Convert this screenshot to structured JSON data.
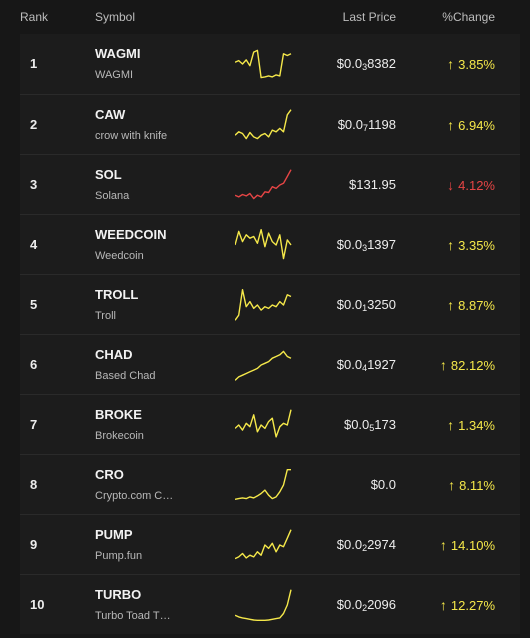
{
  "header": {
    "rank": "Rank",
    "symbol": "Symbol",
    "last_price": "Last Price",
    "change": "%Change"
  },
  "colors": {
    "up": "#f5e84a",
    "down": "#e64545"
  },
  "rows": [
    {
      "rank": "1",
      "ticker": "WAGMI",
      "name": "WAGMI",
      "price_prefix": "$0.0",
      "price_sub": "3",
      "price_rest": "8382",
      "change": "3.85%",
      "dir": "up",
      "spark": [
        0.55,
        0.6,
        0.5,
        0.62,
        0.45,
        0.85,
        0.9,
        0.1,
        0.12,
        0.15,
        0.12,
        0.18,
        0.15,
        0.8,
        0.75,
        0.8
      ]
    },
    {
      "rank": "2",
      "ticker": "CAW",
      "name": "crow with knife",
      "price_prefix": "$0.0",
      "price_sub": "7",
      "price_rest": "1198",
      "change": "6.94%",
      "dir": "up",
      "spark": [
        0.2,
        0.3,
        0.25,
        0.1,
        0.28,
        0.15,
        0.1,
        0.2,
        0.25,
        0.15,
        0.35,
        0.3,
        0.4,
        0.3,
        0.8,
        0.95
      ]
    },
    {
      "rank": "3",
      "ticker": "SOL",
      "name": "Solana",
      "price_prefix": "$131.95",
      "price_sub": "",
      "price_rest": "",
      "change": "4.12%",
      "dir": "down",
      "spark": [
        0.2,
        0.15,
        0.22,
        0.18,
        0.25,
        0.1,
        0.2,
        0.15,
        0.3,
        0.28,
        0.45,
        0.4,
        0.5,
        0.55,
        0.75,
        0.95
      ]
    },
    {
      "rank": "4",
      "ticker": "WEEDCOIN",
      "name": "Weedcoin",
      "price_prefix": "$0.0",
      "price_sub": "3",
      "price_rest": "1397",
      "change": "3.35%",
      "dir": "up",
      "spark": [
        0.5,
        0.9,
        0.6,
        0.8,
        0.7,
        0.75,
        0.55,
        0.95,
        0.45,
        0.85,
        0.6,
        0.5,
        0.8,
        0.1,
        0.65,
        0.5
      ]
    },
    {
      "rank": "5",
      "ticker": "TROLL",
      "name": "Troll",
      "price_prefix": "$0.0",
      "price_sub": "1",
      "price_rest": "3250",
      "change": "8.87%",
      "dir": "up",
      "spark": [
        0.05,
        0.2,
        0.95,
        0.45,
        0.6,
        0.4,
        0.5,
        0.35,
        0.45,
        0.4,
        0.5,
        0.45,
        0.6,
        0.5,
        0.8,
        0.75
      ]
    },
    {
      "rank": "6",
      "ticker": "CHAD",
      "name": "Based Chad",
      "price_prefix": "$0.0",
      "price_sub": "4",
      "price_rest": "1927",
      "change": "82.12%",
      "dir": "up",
      "spark": [
        0.05,
        0.15,
        0.2,
        0.25,
        0.3,
        0.35,
        0.4,
        0.5,
        0.55,
        0.6,
        0.7,
        0.75,
        0.8,
        0.9,
        0.75,
        0.7
      ]
    },
    {
      "rank": "7",
      "ticker": "BROKE",
      "name": "Brokecoin",
      "price_prefix": "$0.0",
      "price_sub": "5",
      "price_rest": "173",
      "change": "1.34%",
      "dir": "up",
      "spark": [
        0.4,
        0.5,
        0.35,
        0.55,
        0.45,
        0.8,
        0.3,
        0.5,
        0.4,
        0.6,
        0.7,
        0.15,
        0.45,
        0.55,
        0.5,
        0.95
      ]
    },
    {
      "rank": "8",
      "ticker": "CRO",
      "name": "Crypto.com C…",
      "price_prefix": "$0.0",
      "price_sub": "",
      "price_rest": "",
      "change": "8.11%",
      "dir": "up",
      "spark": [
        0.08,
        0.1,
        0.12,
        0.1,
        0.15,
        0.12,
        0.18,
        0.25,
        0.35,
        0.2,
        0.1,
        0.15,
        0.3,
        0.5,
        0.95,
        0.95
      ]
    },
    {
      "rank": "9",
      "ticker": "PUMP",
      "name": "Pump.fun",
      "price_prefix": "$0.0",
      "price_sub": "2",
      "price_rest": "2974",
      "change": "14.10%",
      "dir": "up",
      "spark": [
        0.1,
        0.15,
        0.25,
        0.12,
        0.2,
        0.15,
        0.3,
        0.2,
        0.5,
        0.4,
        0.55,
        0.3,
        0.5,
        0.45,
        0.7,
        0.95
      ]
    },
    {
      "rank": "10",
      "ticker": "TURBO",
      "name": "Turbo Toad T…",
      "price_prefix": "$0.0",
      "price_sub": "2",
      "price_rest": "2096",
      "change": "12.27%",
      "dir": "up",
      "spark": [
        0.2,
        0.15,
        0.12,
        0.1,
        0.08,
        0.06,
        0.05,
        0.05,
        0.05,
        0.06,
        0.08,
        0.1,
        0.12,
        0.25,
        0.5,
        0.95
      ]
    }
  ]
}
